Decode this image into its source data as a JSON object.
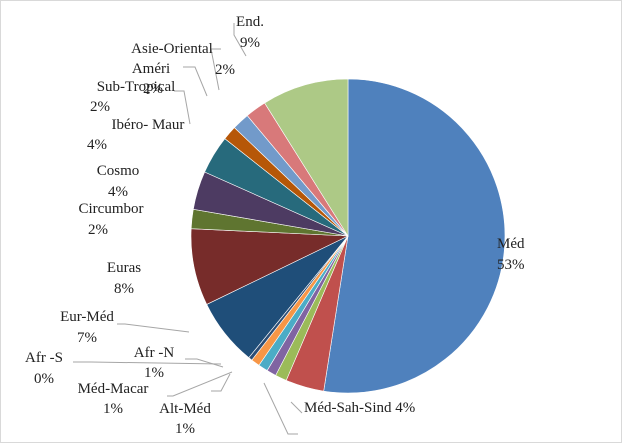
{
  "chart_data": {
    "type": "pie",
    "title": "",
    "legend": "none",
    "start": "top, clockwise",
    "slices": [
      {
        "label": "Méd",
        "value": 53,
        "pct": "53%",
        "color": "#4f81bd"
      },
      {
        "label": "Méd-Sah-Sind",
        "value": 4,
        "pct": "4%",
        "color": "#c0504d"
      },
      {
        "label": "",
        "value": 1.2,
        "pct": "",
        "color": "#9bbb59"
      },
      {
        "label": "Alt-Méd",
        "value": 1,
        "pct": "1%",
        "color": "#8064a2"
      },
      {
        "label": "Méd-Macar",
        "value": 1,
        "pct": "1%",
        "color": "#4bacc6"
      },
      {
        "label": "Afr -N",
        "value": 0.9,
        "pct": "1%",
        "color": "#f79646"
      },
      {
        "label": "Afr -S",
        "value": 0.4,
        "pct": "0%",
        "color": "#2c4d75"
      },
      {
        "label": "Eur-Méd",
        "value": 7,
        "pct": "7%",
        "color": "#1f4e79"
      },
      {
        "label": "Euras",
        "value": 8,
        "pct": "8%",
        "color": "#772c2a"
      },
      {
        "label": "Circumbor",
        "value": 2,
        "pct": "2%",
        "color": "#5f7530"
      },
      {
        "label": "Cosmo",
        "value": 4,
        "pct": "4%",
        "color": "#4d3b62"
      },
      {
        "label": "Ibéro- Maur",
        "value": 4,
        "pct": "4%",
        "color": "#276a7c"
      },
      {
        "label": "Sub-Tropical",
        "value": 1.5,
        "pct": "2%",
        "color": "#b65708"
      },
      {
        "label": "Améri",
        "value": 1.8,
        "pct": "2%",
        "color": "#729aca"
      },
      {
        "label": "Asie-Oriental",
        "value": 2.2,
        "pct": "2%",
        "color": "#d8797a"
      },
      {
        "label": "End.",
        "value": 9,
        "pct": "9%",
        "color": "#adc986"
      }
    ]
  }
}
